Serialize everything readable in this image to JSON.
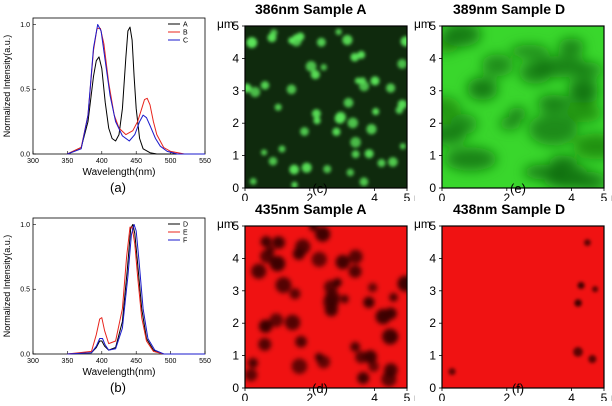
{
  "chart_data": [
    {
      "id": "a",
      "type": "line",
      "panel_label": "(a)",
      "xlabel": "Wavelength(nm)",
      "ylabel": "Normalized Intensity(a.u.)",
      "xlim": [
        300,
        550
      ],
      "ylim": [
        0,
        1.05
      ],
      "x_ticks": [
        "300",
        "350",
        "400",
        "450",
        "500",
        "550"
      ],
      "y_ticks": [
        "0.0",
        "0.5",
        "1.0"
      ],
      "legend_position": "top-right",
      "series": [
        {
          "name": "A",
          "color": "#000000",
          "x": [
            350,
            370,
            380,
            388,
            392,
            396,
            400,
            405,
            410,
            415,
            420,
            425,
            430,
            435,
            438,
            441,
            444,
            447,
            450,
            455,
            460,
            470,
            480,
            500,
            550
          ],
          "y": [
            0,
            0.05,
            0.25,
            0.6,
            0.72,
            0.75,
            0.66,
            0.4,
            0.2,
            0.12,
            0.1,
            0.15,
            0.35,
            0.75,
            0.95,
            0.98,
            0.88,
            0.6,
            0.35,
            0.12,
            0.04,
            0.01,
            0,
            0,
            0
          ]
        },
        {
          "name": "B",
          "color": "#e8241c",
          "x": [
            350,
            370,
            380,
            388,
            393,
            398,
            403,
            410,
            418,
            425,
            435,
            445,
            452,
            458,
            462,
            466,
            470,
            475,
            480,
            490,
            500,
            520,
            550
          ],
          "y": [
            0,
            0.05,
            0.3,
            0.8,
            0.97,
            0.97,
            0.85,
            0.55,
            0.3,
            0.2,
            0.15,
            0.18,
            0.25,
            0.35,
            0.42,
            0.43,
            0.38,
            0.25,
            0.15,
            0.05,
            0.02,
            0,
            0
          ]
        },
        {
          "name": "C",
          "color": "#1a1acc",
          "x": [
            350,
            370,
            380,
            388,
            394,
            399,
            405,
            412,
            420,
            430,
            440,
            448,
            455,
            460,
            465,
            470,
            478,
            485,
            495,
            510,
            550
          ],
          "y": [
            0,
            0.04,
            0.3,
            0.82,
            1.0,
            0.95,
            0.72,
            0.45,
            0.25,
            0.14,
            0.1,
            0.15,
            0.25,
            0.3,
            0.28,
            0.22,
            0.12,
            0.06,
            0.02,
            0,
            0
          ]
        }
      ]
    },
    {
      "id": "b",
      "type": "line",
      "panel_label": "(b)",
      "xlabel": "Wavelength(nm)",
      "ylabel": "Normalized Intensity(a.u.)",
      "xlim": [
        300,
        550
      ],
      "ylim": [
        0,
        1.05
      ],
      "x_ticks": [
        "300",
        "350",
        "400",
        "450",
        "500",
        "550"
      ],
      "y_ticks": [
        "0.0",
        "0.5",
        "1.0"
      ],
      "legend_position": "top-right",
      "series": [
        {
          "name": "D",
          "color": "#000000",
          "x": [
            350,
            385,
            392,
            397,
            400,
            404,
            410,
            420,
            430,
            437,
            442,
            445,
            448,
            452,
            458,
            465,
            475,
            490,
            550
          ],
          "y": [
            0,
            0.01,
            0.05,
            0.1,
            0.1,
            0.06,
            0.03,
            0.05,
            0.25,
            0.65,
            0.97,
            1.0,
            0.93,
            0.7,
            0.35,
            0.12,
            0.03,
            0,
            0
          ]
        },
        {
          "name": "E",
          "color": "#e8241c",
          "x": [
            350,
            385,
            392,
            397,
            400,
            404,
            410,
            420,
            430,
            436,
            441,
            444,
            448,
            452,
            458,
            465,
            475,
            490,
            550
          ],
          "y": [
            0,
            0.02,
            0.15,
            0.27,
            0.28,
            0.18,
            0.08,
            0.1,
            0.35,
            0.75,
            0.98,
            0.98,
            0.85,
            0.6,
            0.28,
            0.1,
            0.02,
            0,
            0
          ]
        },
        {
          "name": "F",
          "color": "#1a1acc",
          "x": [
            350,
            385,
            392,
            397,
            401,
            405,
            410,
            420,
            430,
            438,
            443,
            447,
            450,
            454,
            460,
            467,
            477,
            490,
            550
          ],
          "y": [
            0,
            0.01,
            0.06,
            0.12,
            0.12,
            0.07,
            0.03,
            0.04,
            0.2,
            0.6,
            0.92,
            1.0,
            0.95,
            0.72,
            0.35,
            0.12,
            0.03,
            0,
            0
          ]
        }
      ]
    }
  ],
  "maps": [
    {
      "id": "c",
      "title": "386nm Sample A",
      "panel_label": "(c)",
      "unit": "μm",
      "x_ticks": [
        "0",
        "2",
        "4",
        "5"
      ],
      "y_ticks": [
        "0",
        "1",
        "2",
        "3",
        "4",
        "5"
      ],
      "background": "#0f2a0d",
      "spot_color": "#5ce85a"
    },
    {
      "id": "e",
      "title": "389nm Sample D",
      "panel_label": "(e)",
      "unit": "μm",
      "x_ticks": [
        "0",
        "2",
        "4",
        "5"
      ],
      "y_ticks": [
        "0",
        "1",
        "2",
        "3",
        "4",
        "5"
      ],
      "background": "#39d72c",
      "spot_color": "#0f6a0a"
    },
    {
      "id": "d",
      "title": "435nm Sample A",
      "panel_label": "(d)",
      "unit": "μm",
      "x_ticks": [
        "0",
        "2",
        "4",
        "5"
      ],
      "y_ticks": [
        "0",
        "1",
        "2",
        "3",
        "4",
        "5"
      ],
      "background": "#f01212",
      "spot_color": "#3a0505"
    },
    {
      "id": "f",
      "title": "438nm Sample D",
      "panel_label": "(f)",
      "unit": "μm",
      "x_ticks": [
        "0",
        "2",
        "4",
        "5"
      ],
      "y_ticks": [
        "0",
        "1",
        "2",
        "3",
        "4",
        "5"
      ],
      "background": "#f01212",
      "spot_color": "#3a0505"
    }
  ]
}
